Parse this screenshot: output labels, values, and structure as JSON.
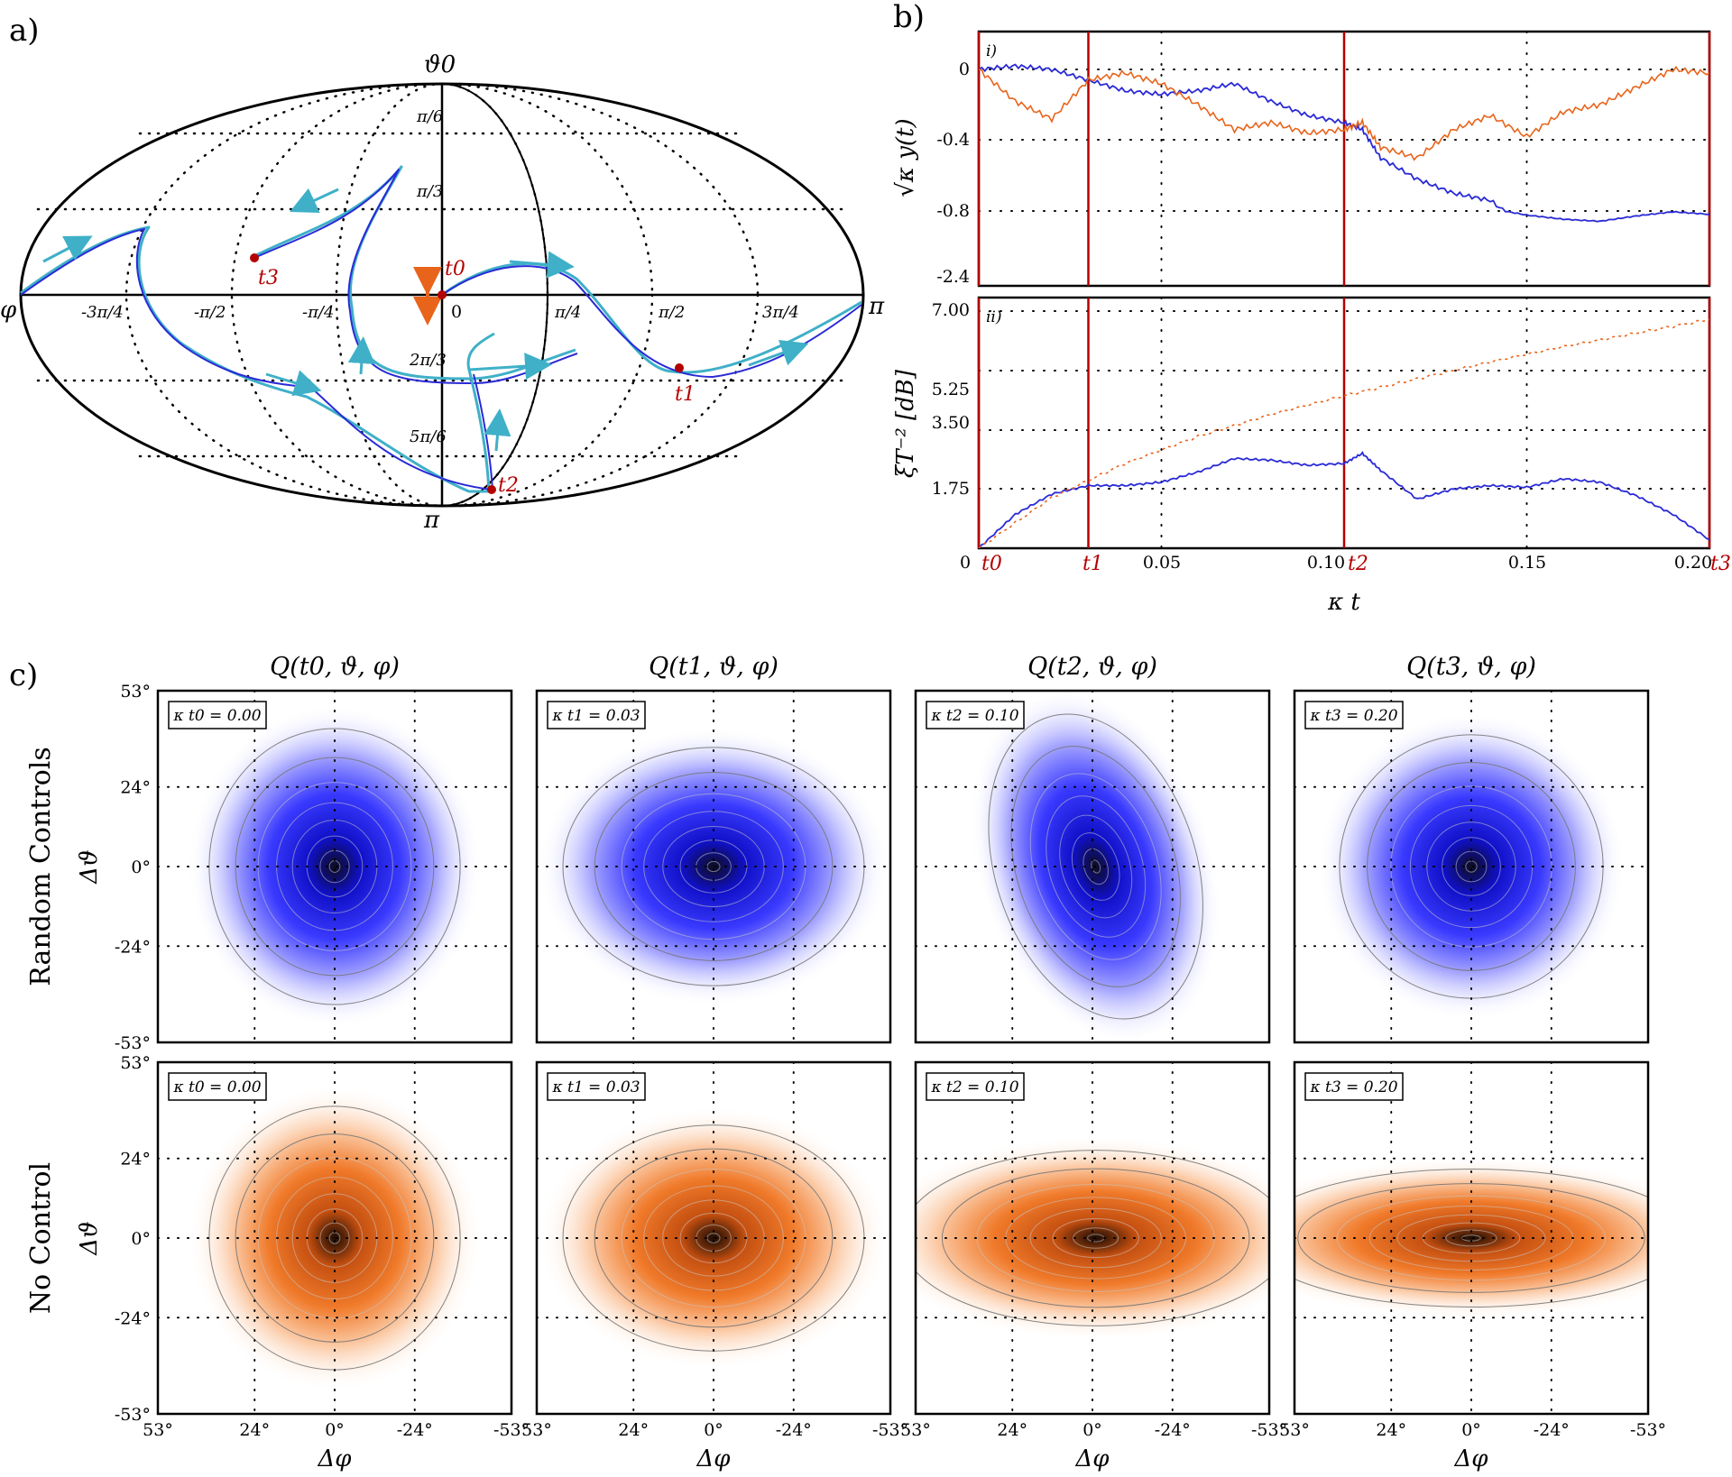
{
  "panel_labels": {
    "a": "a)",
    "b": "b)",
    "c": "c)"
  },
  "sphere": {
    "top_label": "ϑ0",
    "left_label": "φ",
    "right_label": "π",
    "bottom_label": "π",
    "center_label": "0",
    "phi_ticks": [
      "-3π/4",
      "-π/2",
      "-π/4",
      "π/4",
      "π/2",
      "3π/4"
    ],
    "theta_ticks": [
      "π/6",
      "π/3",
      "2π/3",
      "5π/6"
    ],
    "time_points": [
      "t0",
      "t1",
      "t2",
      "t3"
    ]
  },
  "colors": {
    "controlled": "#2a2ad6",
    "uncontrolled": "#e8641b",
    "marker": "#b30000",
    "arrow": "#3fb0c8",
    "vline": "#b30000"
  },
  "chart_data": [
    {
      "id": "b-i",
      "type": "line",
      "panel_tag": "i)",
      "ylabel": "√κ y(t)",
      "yticks": [
        "0",
        "-0.4",
        "-0.8",
        "-2.4"
      ],
      "xlim": [
        0,
        0.2
      ],
      "series": [
        {
          "name": "random controls",
          "x": [
            0,
            0.01,
            0.02,
            0.03,
            0.04,
            0.05,
            0.06,
            0.07,
            0.08,
            0.09,
            0.1,
            0.105,
            0.11,
            0.12,
            0.13,
            0.14,
            0.15,
            0.16,
            0.17,
            0.18,
            0.19,
            0.2
          ],
          "y": [
            0,
            0.02,
            0,
            -0.06,
            -0.12,
            -0.14,
            -0.12,
            -0.08,
            -0.18,
            -0.26,
            -0.3,
            -0.34,
            -0.5,
            -0.62,
            -0.7,
            -0.74,
            -0.9,
            -1.0,
            -1.05,
            -0.92,
            -0.82,
            -0.88
          ]
        },
        {
          "name": "no control",
          "x": [
            0,
            0.01,
            0.02,
            0.03,
            0.04,
            0.05,
            0.06,
            0.07,
            0.08,
            0.09,
            0.1,
            0.105,
            0.11,
            0.12,
            0.13,
            0.14,
            0.15,
            0.16,
            0.17,
            0.18,
            0.19,
            0.2
          ],
          "y": [
            0,
            -0.18,
            -0.28,
            -0.06,
            -0.02,
            -0.08,
            -0.2,
            -0.34,
            -0.3,
            -0.36,
            -0.34,
            -0.3,
            -0.44,
            -0.5,
            -0.34,
            -0.26,
            -0.38,
            -0.24,
            -0.2,
            -0.1,
            0,
            -0.02
          ]
        }
      ],
      "vlines": [
        0,
        0.03,
        0.1,
        0.2
      ]
    },
    {
      "id": "b-ii",
      "type": "line",
      "panel_tag": "ii)",
      "ylabel": "ξT⁻² [dB]",
      "yticks": [
        "7.00",
        "5.25",
        "3.50",
        "1.75"
      ],
      "xlabel": "κ t",
      "xticks": [
        "0",
        "0.05",
        "0.10",
        "0.15",
        "0.20"
      ],
      "time_ticks": [
        "t0",
        "t1",
        "t2",
        "t3"
      ],
      "xlim": [
        0,
        0.2
      ],
      "ylim": [
        0,
        7.0
      ],
      "series": [
        {
          "name": "random controls",
          "x": [
            0,
            0.01,
            0.02,
            0.03,
            0.04,
            0.05,
            0.06,
            0.07,
            0.08,
            0.09,
            0.1,
            0.105,
            0.11,
            0.12,
            0.13,
            0.14,
            0.15,
            0.16,
            0.17,
            0.18,
            0.19,
            0.2
          ],
          "y": [
            0,
            1.0,
            1.6,
            1.85,
            1.85,
            1.95,
            2.25,
            2.65,
            2.6,
            2.45,
            2.5,
            2.8,
            2.3,
            1.45,
            1.75,
            1.85,
            1.8,
            2.05,
            1.95,
            1.55,
            1.0,
            0.25
          ]
        },
        {
          "name": "no control",
          "x": [
            0,
            0.02,
            0.04,
            0.06,
            0.08,
            0.1,
            0.12,
            0.14,
            0.16,
            0.18,
            0.2
          ],
          "y": [
            0,
            1.5,
            2.5,
            3.3,
            3.95,
            4.5,
            5.0,
            5.5,
            5.95,
            6.35,
            6.75
          ]
        }
      ],
      "vlines": [
        0,
        0.03,
        0.1,
        0.2
      ]
    },
    {
      "id": "c",
      "type": "heatmap",
      "col_titles": [
        "Q(t0, ϑ, φ)",
        "Q(t1, ϑ, φ)",
        "Q(t2, ϑ, φ)",
        "Q(t3, ϑ, φ)"
      ],
      "row_labels": [
        "Random Controls",
        "No Control"
      ],
      "box_labels": [
        "κ t0 = 0.00",
        "κ t1 = 0.03",
        "κ t2 = 0.10",
        "κ t3 = 0.20"
      ],
      "ylabel": "Δϑ",
      "xlabel": "Δφ",
      "yticks": [
        "53°",
        "24°",
        "0°",
        "-24°",
        "-53°"
      ],
      "xticks": [
        "53°",
        "24°",
        "0°",
        "-24°",
        "-53°"
      ],
      "tick_values": [
        53,
        24,
        0,
        -24,
        -53
      ],
      "distributions": {
        "random_controls": [
          {
            "sx": 20,
            "sy": 22,
            "rot": 0,
            "dx": 0
          },
          {
            "sx": 24,
            "sy": 19,
            "rot": 0,
            "dx": 0
          },
          {
            "sx": 16,
            "sy": 25,
            "rot": 18,
            "dx": -1
          },
          {
            "sx": 21,
            "sy": 21,
            "rot": 0,
            "dx": 0
          }
        ],
        "no_control": [
          {
            "sx": 20,
            "sy": 21,
            "rot": 0,
            "dx": 0
          },
          {
            "sx": 24,
            "sy": 18,
            "rot": 0,
            "dx": 0
          },
          {
            "sx": 31,
            "sy": 14,
            "rot": 0,
            "dx": -1
          },
          {
            "sx": 35,
            "sy": 11,
            "rot": 0,
            "dx": 0
          }
        ]
      }
    }
  ]
}
